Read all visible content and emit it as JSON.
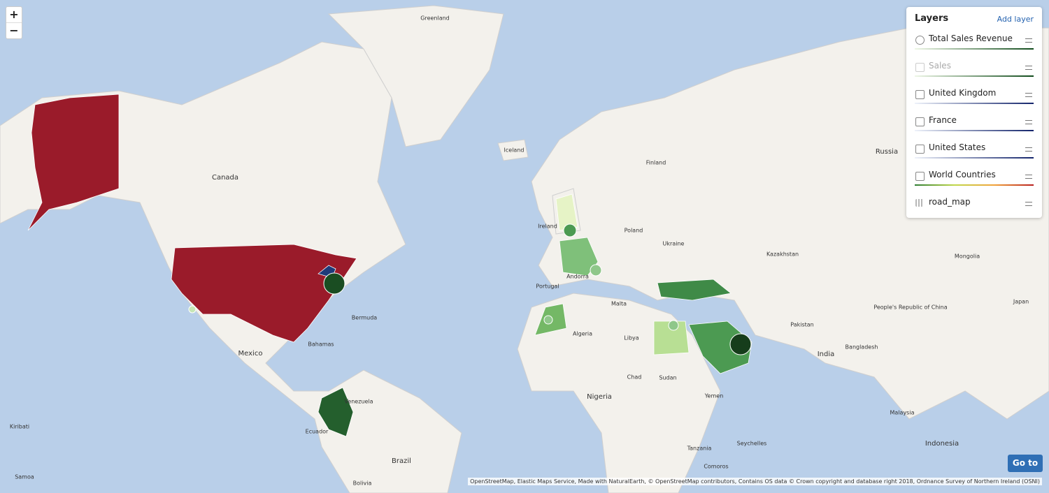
{
  "zoom": {
    "zoom_in": "+",
    "zoom_out": "−"
  },
  "layers_panel": {
    "title": "Layers",
    "add_layer": "Add layer",
    "layers": [
      {
        "name": "Total Sales Revenue"
      },
      {
        "name": "Sales"
      },
      {
        "name": "United Kingdom"
      },
      {
        "name": "France"
      },
      {
        "name": "United States"
      },
      {
        "name": "World Countries"
      },
      {
        "name": "road_map"
      }
    ]
  },
  "map_labels": [
    "Greenland",
    "Iceland",
    "Canada",
    "Finland",
    "Poland",
    "Ukraine",
    "Kazakhstan",
    "Mongolia",
    "Russia",
    "People's Republic of China",
    "Japan",
    "India",
    "Pakistan",
    "Bangladesh",
    "Libya",
    "Algeria",
    "Chad",
    "Sudan",
    "Nigeria",
    "Tanzania",
    "Brazil",
    "Bolivia",
    "Venezuela",
    "Ecuador",
    "Mexico",
    "Bahamas",
    "Bermuda",
    "Kiribati",
    "Yemen",
    "Indonesia",
    "Seychelles",
    "Malta",
    "Portugal",
    "Andorra",
    "Ireland",
    "Comoros",
    "Malaysia",
    "Samoa"
  ],
  "go_to": "Go to",
  "attribution": "OpenStreetMap, Elastic Maps Service, Made with NaturalEarth, © OpenStreetMap contributors, Contains OS data © Crown copyright and database right 2018, Ordnance Survey of Northern Ireland (OSNI)"
}
